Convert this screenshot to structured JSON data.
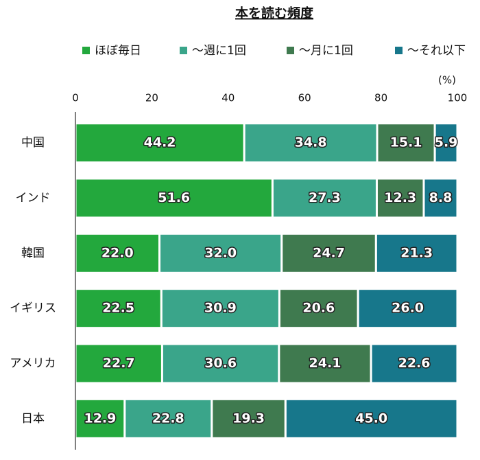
{
  "chart_data": {
    "type": "stacked_barh",
    "title": "本を読む頻度",
    "x_unit": "(%)",
    "categories": [
      "中国",
      "インド",
      "韓国",
      "イギリス",
      "アメリカ",
      "日本"
    ],
    "series": [
      {
        "name": "ほぼ毎日",
        "color": "#23a83d",
        "values": [
          44.2,
          51.6,
          22,
          22.5,
          22.7,
          12.9
        ],
        "value_labels": [
          "44.2",
          "51.6",
          "22.0",
          "22.5",
          "22.7",
          "12.9"
        ]
      },
      {
        "name": "～週に1回",
        "color": "#3aa58a",
        "values": [
          34.8,
          27.3,
          32,
          30.9,
          30.6,
          22.8
        ],
        "value_labels": [
          "34.8",
          "27.3",
          "32.0",
          "30.9",
          "30.6",
          "22.8"
        ]
      },
      {
        "name": "～月に1回",
        "color": "#3f7a4f",
        "values": [
          15.1,
          12.3,
          24.7,
          20.6,
          24.1,
          19.3
        ],
        "value_labels": [
          "15.1",
          "12.3",
          "24.7",
          "20.6",
          "24.1",
          "19.3"
        ]
      },
      {
        "name": "～それ以下",
        "color": "#17778b",
        "values": [
          5.9,
          8.8,
          21.3,
          26,
          22.6,
          45
        ],
        "value_labels": [
          "5.9",
          "8.8",
          "21.3",
          "26.0",
          "22.6",
          "45.0"
        ]
      }
    ],
    "xlim": [
      0,
      100
    ],
    "xticks": [
      0,
      20,
      40,
      60,
      80,
      100
    ],
    "grid": false
  }
}
